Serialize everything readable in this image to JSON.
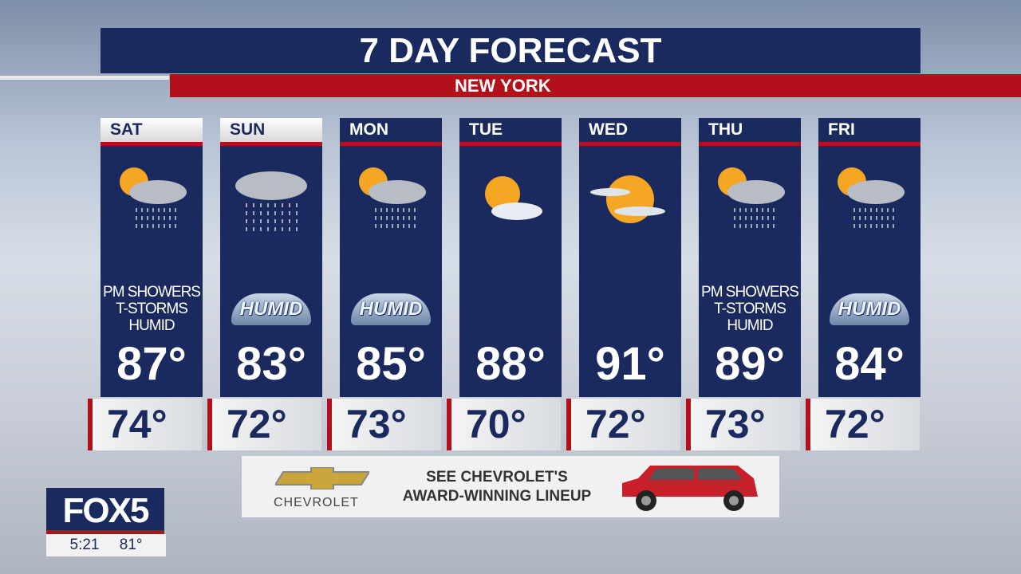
{
  "header": {
    "title": "7 DAY FORECAST",
    "location": "NEW YORK"
  },
  "days": [
    {
      "day": "SAT",
      "high": "87°",
      "low": "74°",
      "icon": "sun-cloud-rain-icon",
      "condition": "PM SHOWERS T-STORMS HUMID",
      "badge": ""
    },
    {
      "day": "SUN",
      "high": "83°",
      "low": "72°",
      "icon": "cloud-rain-icon",
      "condition": "",
      "badge": "HUMID"
    },
    {
      "day": "MON",
      "high": "85°",
      "low": "73°",
      "icon": "sun-cloud-rain-icon",
      "condition": "",
      "badge": "HUMID"
    },
    {
      "day": "TUE",
      "high": "88°",
      "low": "70°",
      "icon": "partly-sunny-icon",
      "condition": "",
      "badge": ""
    },
    {
      "day": "WED",
      "high": "91°",
      "low": "72°",
      "icon": "hazy-sun-icon",
      "condition": "",
      "badge": ""
    },
    {
      "day": "THU",
      "high": "89°",
      "low": "73°",
      "icon": "sun-cloud-rain-icon",
      "condition": "PM SHOWERS T-STORMS HUMID",
      "badge": ""
    },
    {
      "day": "FRI",
      "high": "84°",
      "low": "72°",
      "icon": "sun-cloud-rain-icon",
      "condition": "",
      "badge": "HUMID"
    }
  ],
  "ad": {
    "brand": "CHEVROLET",
    "tagline_1": "SEE CHEVROLET'S",
    "tagline_2": "AWARD-WINNING LINEUP"
  },
  "station": {
    "logo": "FOX5",
    "time": "5:21",
    "temp": "81°"
  },
  "colors": {
    "navy": "#1b2a5e",
    "red": "#b2101b"
  }
}
